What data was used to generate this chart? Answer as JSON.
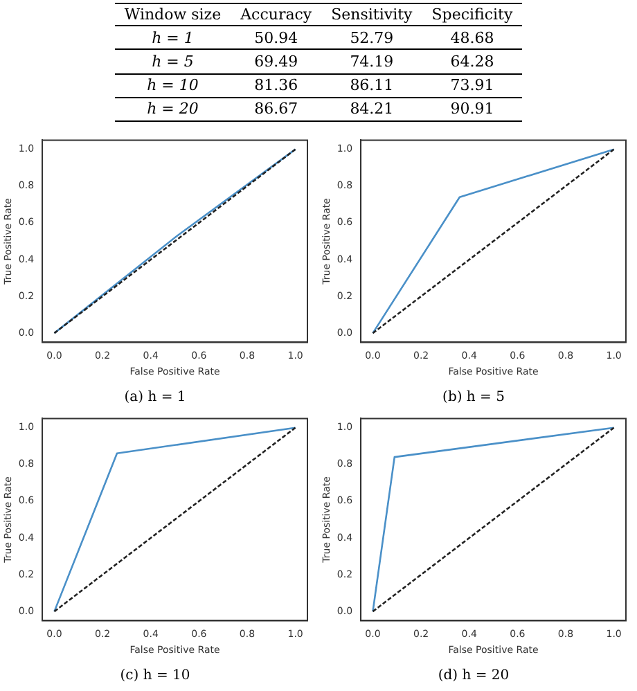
{
  "chart_data": [
    {
      "type": "other",
      "legend_title": "Window size",
      "categories": [
        "Accuracy",
        "Sensitivity",
        "Specificity"
      ],
      "data_labels": true,
      "series": [
        {
          "name": "h = 1",
          "values": [
            50.94,
            52.79,
            48.68
          ]
        },
        {
          "name": "h = 5",
          "values": [
            69.49,
            74.19,
            64.28
          ]
        },
        {
          "name": "h = 10",
          "values": [
            81.36,
            86.11,
            73.91
          ]
        },
        {
          "name": "h = 20",
          "values": [
            86.67,
            84.21,
            90.91
          ]
        }
      ]
    },
    {
      "type": "line",
      "title": "(a) h = 1",
      "xlabel": "False Positive Rate",
      "ylabel": "True Positive Rate",
      "xlim": [
        -0.05,
        1.05
      ],
      "ylim": [
        -0.05,
        1.05
      ],
      "xticks": [
        {
          "value": 0,
          "label": "0.0"
        },
        {
          "value": 0.2,
          "label": "0.2"
        },
        {
          "value": 0.4,
          "label": "0.4"
        },
        {
          "value": 0.6,
          "label": "0.6"
        },
        {
          "value": 0.8,
          "label": "0.8"
        },
        {
          "value": 1,
          "label": "1.0"
        }
      ],
      "yticks": [
        {
          "value": 0,
          "label": "0.0"
        },
        {
          "value": 0.2,
          "label": "0.2"
        },
        {
          "value": 0.4,
          "label": "0.4"
        },
        {
          "value": 0.6,
          "label": "0.6"
        },
        {
          "value": 0.8,
          "label": "0.8"
        },
        {
          "value": 1,
          "label": "1.0"
        }
      ],
      "marker": "none",
      "series": [
        {
          "color": "#4a90c8",
          "x": [
            0,
            0.51,
            1
          ],
          "values": [
            0,
            0.53,
            1
          ]
        },
        {
          "color": "#222222",
          "line_style": "dashed",
          "x": [
            0,
            1
          ],
          "values": [
            0,
            1
          ]
        }
      ]
    },
    {
      "type": "line",
      "title": "(b) h = 5",
      "xlabel": "False Positive Rate",
      "ylabel": "True Positive Rate",
      "xlim": [
        -0.05,
        1.05
      ],
      "ylim": [
        -0.05,
        1.05
      ],
      "xticks": [
        {
          "value": 0,
          "label": "0.0"
        },
        {
          "value": 0.2,
          "label": "0.2"
        },
        {
          "value": 0.4,
          "label": "0.4"
        },
        {
          "value": 0.6,
          "label": "0.6"
        },
        {
          "value": 0.8,
          "label": "0.8"
        },
        {
          "value": 1,
          "label": "1.0"
        }
      ],
      "yticks": [
        {
          "value": 0,
          "label": "0.0"
        },
        {
          "value": 0.2,
          "label": "0.2"
        },
        {
          "value": 0.4,
          "label": "0.4"
        },
        {
          "value": 0.6,
          "label": "0.6"
        },
        {
          "value": 0.8,
          "label": "0.8"
        },
        {
          "value": 1,
          "label": "1.0"
        }
      ],
      "marker": "none",
      "series": [
        {
          "color": "#4a90c8",
          "x": [
            0,
            0.36,
            1
          ],
          "values": [
            0,
            0.74,
            1
          ]
        },
        {
          "color": "#222222",
          "line_style": "dashed",
          "x": [
            0,
            1
          ],
          "values": [
            0,
            1
          ]
        }
      ]
    },
    {
      "type": "line",
      "title": "(c) h = 10",
      "xlabel": "False Positive Rate",
      "ylabel": "True Positive Rate",
      "xlim": [
        -0.05,
        1.05
      ],
      "ylim": [
        -0.05,
        1.05
      ],
      "xticks": [
        {
          "value": 0,
          "label": "0.0"
        },
        {
          "value": 0.2,
          "label": "0.2"
        },
        {
          "value": 0.4,
          "label": "0.4"
        },
        {
          "value": 0.6,
          "label": "0.6"
        },
        {
          "value": 0.8,
          "label": "0.8"
        },
        {
          "value": 1,
          "label": "1.0"
        }
      ],
      "yticks": [
        {
          "value": 0,
          "label": "0.0"
        },
        {
          "value": 0.2,
          "label": "0.2"
        },
        {
          "value": 0.4,
          "label": "0.4"
        },
        {
          "value": 0.6,
          "label": "0.6"
        },
        {
          "value": 0.8,
          "label": "0.8"
        },
        {
          "value": 1,
          "label": "1.0"
        }
      ],
      "marker": "none",
      "series": [
        {
          "color": "#4a90c8",
          "x": [
            0,
            0.26,
            1
          ],
          "values": [
            0,
            0.86,
            1
          ]
        },
        {
          "color": "#222222",
          "line_style": "dashed",
          "x": [
            0,
            1
          ],
          "values": [
            0,
            1
          ]
        }
      ]
    },
    {
      "type": "line",
      "title": "(d) h = 20",
      "xlabel": "False Positive Rate",
      "ylabel": "True Positive Rate",
      "xlim": [
        -0.05,
        1.05
      ],
      "ylim": [
        -0.05,
        1.05
      ],
      "xticks": [
        {
          "value": 0,
          "label": "0.0"
        },
        {
          "value": 0.2,
          "label": "0.2"
        },
        {
          "value": 0.4,
          "label": "0.4"
        },
        {
          "value": 0.6,
          "label": "0.6"
        },
        {
          "value": 0.8,
          "label": "0.8"
        },
        {
          "value": 1,
          "label": "1.0"
        }
      ],
      "yticks": [
        {
          "value": 0,
          "label": "0.0"
        },
        {
          "value": 0.2,
          "label": "0.2"
        },
        {
          "value": 0.4,
          "label": "0.4"
        },
        {
          "value": 0.6,
          "label": "0.6"
        },
        {
          "value": 0.8,
          "label": "0.8"
        },
        {
          "value": 1,
          "label": "1.0"
        }
      ],
      "marker": "none",
      "series": [
        {
          "color": "#4a90c8",
          "x": [
            0,
            0.09,
            1
          ],
          "values": [
            0,
            0.84,
            1
          ]
        },
        {
          "color": "#222222",
          "line_style": "dashed",
          "x": [
            0,
            1
          ],
          "values": [
            0,
            1
          ]
        }
      ]
    }
  ]
}
